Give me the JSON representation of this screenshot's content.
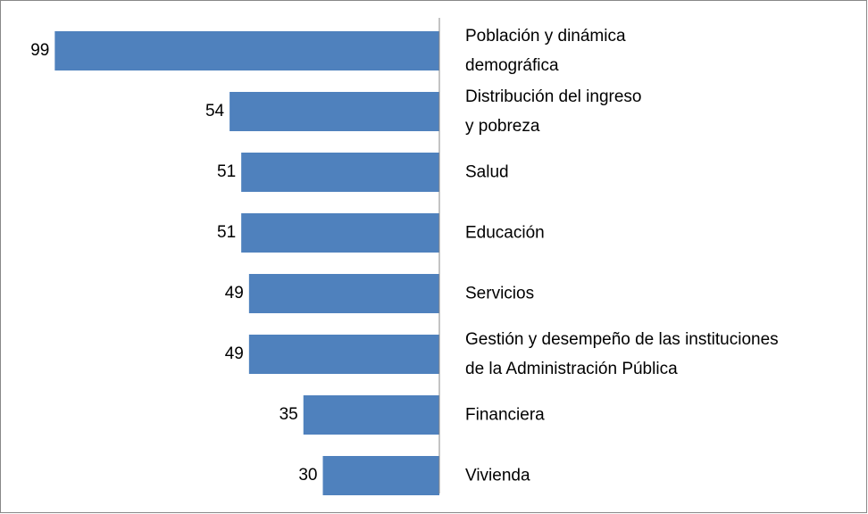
{
  "chart_data": {
    "type": "bar",
    "orientation": "horizontal",
    "categories": [
      "Población y dinámica\ndemográfica",
      "Distribución del ingreso\ny pobreza",
      "Salud",
      "Educación",
      "Servicios",
      "Gestión y desempeño de las instituciones\nde la Administración Pública",
      "Financiera",
      "Vivienda"
    ],
    "values": [
      99,
      54,
      51,
      51,
      49,
      49,
      35,
      30
    ],
    "color": "#4f81bd",
    "xlim": [
      0,
      100
    ]
  }
}
